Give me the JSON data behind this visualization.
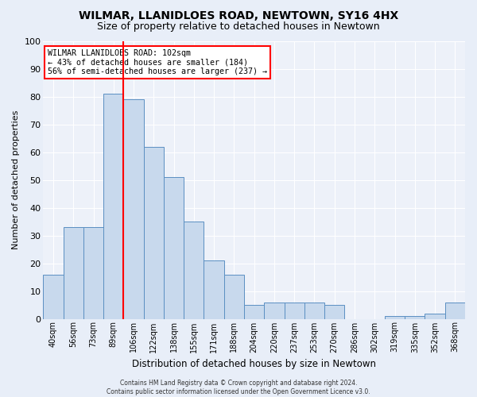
{
  "title": "WILMAR, LLANIDLOES ROAD, NEWTOWN, SY16 4HX",
  "subtitle": "Size of property relative to detached houses in Newtown",
  "xlabel": "Distribution of detached houses by size in Newtown",
  "ylabel": "Number of detached properties",
  "categories": [
    "40sqm",
    "56sqm",
    "73sqm",
    "89sqm",
    "106sqm",
    "122sqm",
    "138sqm",
    "155sqm",
    "171sqm",
    "188sqm",
    "204sqm",
    "220sqm",
    "237sqm",
    "253sqm",
    "270sqm",
    "286sqm",
    "302sqm",
    "319sqm",
    "335sqm",
    "352sqm",
    "368sqm"
  ],
  "values": [
    16,
    33,
    33,
    81,
    79,
    62,
    51,
    35,
    21,
    16,
    5,
    6,
    6,
    6,
    5,
    0,
    0,
    1,
    1,
    2,
    6
  ],
  "bar_color": "#c8d9ed",
  "bar_edgecolor": "#5b8fc2",
  "bar_linewidth": 0.7,
  "vline_x": 3.5,
  "vline_color": "red",
  "annotation_title": "WILMAR LLANIDLOES ROAD: 102sqm",
  "annotation_line1": "← 43% of detached houses are smaller (184)",
  "annotation_line2": "56% of semi-detached houses are larger (237) →",
  "annotation_box_color": "white",
  "annotation_box_edgecolor": "red",
  "ylim": [
    0,
    100
  ],
  "yticks": [
    0,
    10,
    20,
    30,
    40,
    50,
    60,
    70,
    80,
    90,
    100
  ],
  "background_color": "#e8eef8",
  "plot_bg_color": "#edf1f9",
  "grid_color": "white",
  "footer_line1": "Contains HM Land Registry data © Crown copyright and database right 2024.",
  "footer_line2": "Contains public sector information licensed under the Open Government Licence v3.0."
}
